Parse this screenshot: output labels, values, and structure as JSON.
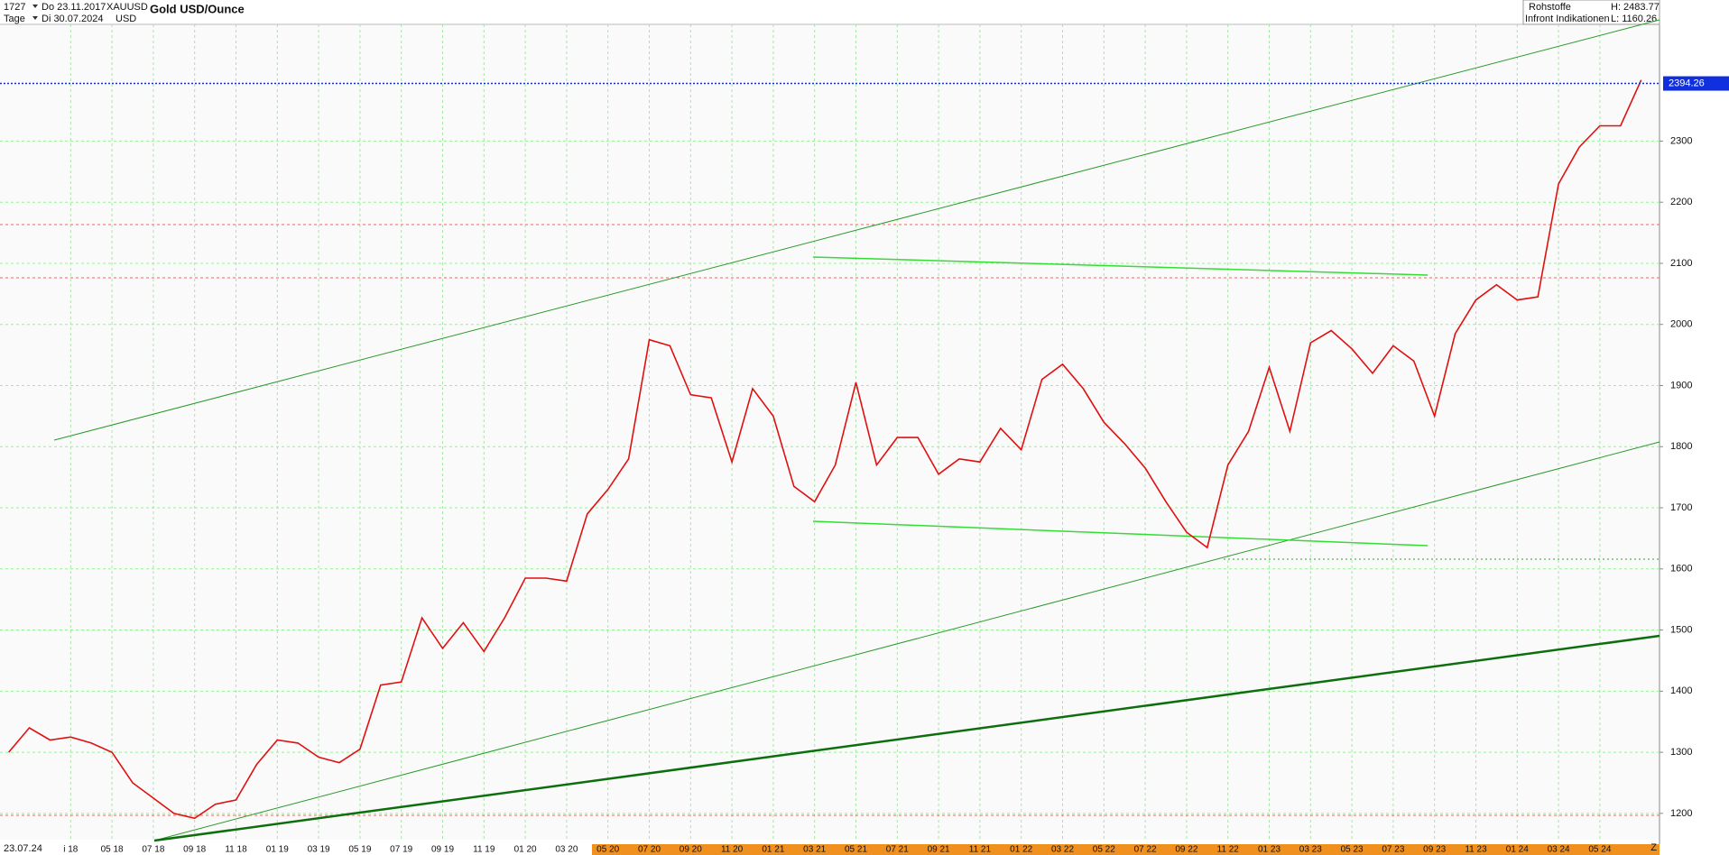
{
  "header": {
    "bars": "1727",
    "from_date": "Do 23.11.2017",
    "symbol": "XAUUSD",
    "interval": "Tage",
    "to_date": "Di 30.07.2024",
    "currency": "USD",
    "category": "Rohstoffe",
    "high": "H: 2483.77",
    "source": "Infront Indikationen",
    "low": "L: 1160.26",
    "cursor_date": "23.07.24",
    "end_marker": "Z"
  },
  "chart_data": {
    "type": "line",
    "title": "Gold USD/Ounce",
    "color": "#e01010",
    "last_price": 2394.26,
    "categories": [
      null,
      null,
      null,
      "i 18",
      null,
      "05 18",
      null,
      "07 18",
      null,
      "09 18",
      null,
      "11 18",
      null,
      "01 19",
      null,
      "03 19",
      null,
      "05 19",
      null,
      "07 19",
      null,
      "09 19",
      null,
      "11 19",
      null,
      "01 20",
      null,
      "03 20",
      null,
      "05 20",
      null,
      "07 20",
      null,
      "09 20",
      null,
      "11 20",
      null,
      "01 21",
      null,
      "03 21",
      null,
      "05 21",
      null,
      "07 21",
      null,
      "09 21",
      null,
      "11 21",
      null,
      "01 22",
      null,
      "03 22",
      null,
      "05 22",
      null,
      "07 22",
      null,
      "09 22",
      null,
      "11 22",
      null,
      "01 23",
      null,
      "03 23",
      null,
      "05 23",
      null,
      "07 23",
      null,
      "09 23",
      null,
      "11 23",
      null,
      "01 24",
      null,
      "03 24",
      null,
      "05 24",
      null,
      null
    ],
    "values": [
      1300,
      1340,
      1320,
      1325,
      1315,
      1300,
      1250,
      1225,
      1200,
      1192,
      1215,
      1222,
      1280,
      1320,
      1315,
      1292,
      1283,
      1305,
      1410,
      1415,
      1520,
      1470,
      1512,
      1465,
      1520,
      1585,
      1585,
      1580,
      1690,
      1730,
      1780,
      1975,
      1965,
      1885,
      1880,
      1775,
      1895,
      1850,
      1735,
      1710,
      1770,
      1905,
      1770,
      1815,
      1815,
      1755,
      1780,
      1775,
      1830,
      1795,
      1910,
      1935,
      1895,
      1840,
      1805,
      1765,
      1710,
      1660,
      1635,
      1770,
      1825,
      1930,
      1825,
      1970,
      1990,
      1960,
      1920,
      1965,
      1940,
      1850,
      1985,
      2040,
      2065,
      2040,
      2045,
      2230,
      2290,
      2325,
      2325,
      2400
    ],
    "ylim": [
      1157,
      2491
    ],
    "yticks": [
      1200,
      1300,
      1400,
      1500,
      1600,
      1700,
      1800,
      1900,
      2000,
      2100,
      2200,
      2300
    ],
    "grid": true
  }
}
